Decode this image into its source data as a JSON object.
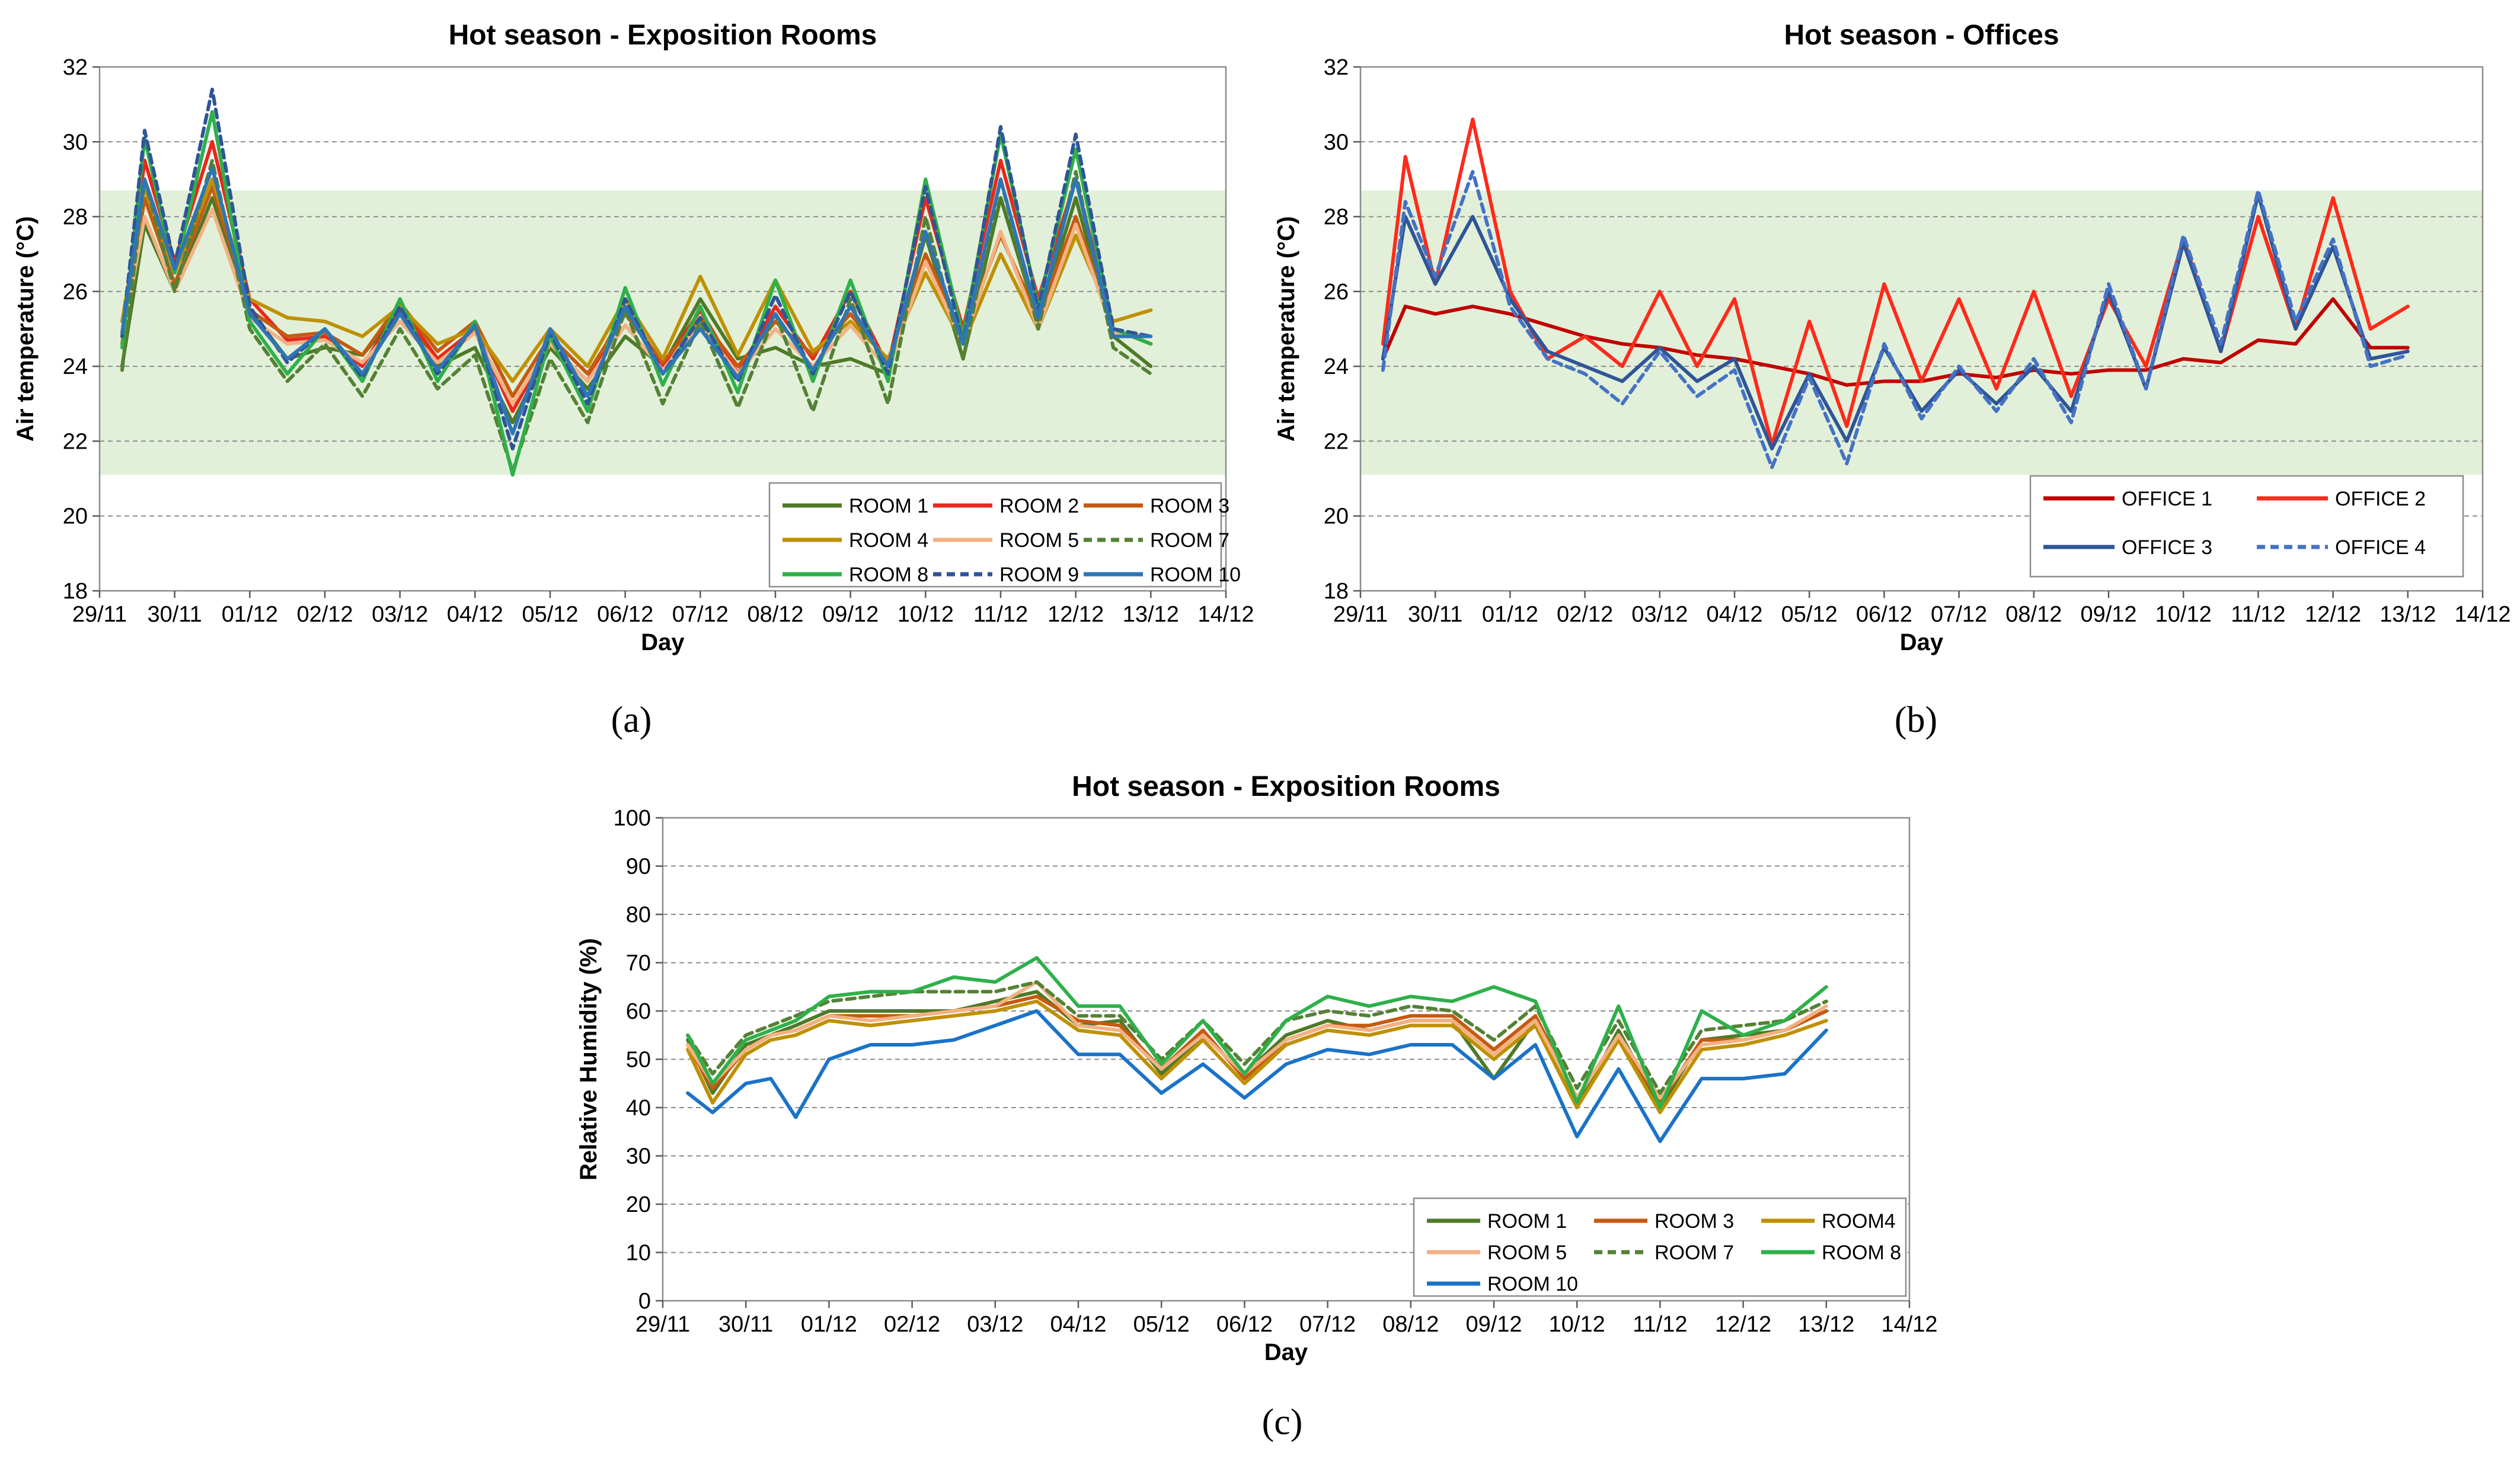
{
  "chart_data": [
    {
      "type": "line",
      "title": "Hot season - Exposition Rooms",
      "panel_label": "(a)",
      "xlabel": "Day",
      "ylabel": "Air temperature  (°C)",
      "xticks": [
        "29/11",
        "30/11",
        "01/12",
        "02/12",
        "03/12",
        "04/12",
        "05/12",
        "06/12",
        "07/12",
        "08/12",
        "09/12",
        "10/12",
        "11/12",
        "12/12",
        "13/12",
        "14/12"
      ],
      "ylim": [
        18,
        32
      ],
      "yticks": [
        18,
        20,
        22,
        24,
        26,
        28,
        30,
        32
      ],
      "comfort_band": [
        21.1,
        28.7
      ],
      "grid": true,
      "legend_position": "bottom-right",
      "x": [
        0.3,
        0.6,
        1.0,
        1.5,
        2.0,
        2.5,
        3.0,
        3.5,
        4.0,
        4.5,
        5.0,
        5.5,
        6.0,
        6.5,
        7.0,
        7.5,
        8.0,
        8.5,
        9.0,
        9.5,
        10.0,
        10.5,
        11.0,
        11.5,
        12.0,
        12.5,
        13.0,
        13.5,
        14.0
      ],
      "series": [
        {
          "name": "ROOM 1",
          "color": "#4e7a27",
          "dash": false,
          "values": [
            24.0,
            27.8,
            26.0,
            28.5,
            25.5,
            24.2,
            24.5,
            24.3,
            25.5,
            24.0,
            24.5,
            22.5,
            24.5,
            23.4,
            24.8,
            24.0,
            25.8,
            24.2,
            24.5,
            24.0,
            24.2,
            23.8,
            27.5,
            24.2,
            28.5,
            25.2,
            28.5,
            24.8,
            24.0
          ]
        },
        {
          "name": "ROOM 2",
          "color": "#e8281c",
          "dash": false,
          "values": [
            24.8,
            29.5,
            26.8,
            30.0,
            25.8,
            24.7,
            24.8,
            24.0,
            25.6,
            24.2,
            25.0,
            22.8,
            24.6,
            23.6,
            25.6,
            24.0,
            25.5,
            23.8,
            25.6,
            24.2,
            26.0,
            24.0,
            28.5,
            25.0,
            29.5,
            25.8,
            29.0,
            25.0,
            24.6
          ]
        },
        {
          "name": "ROOM 3",
          "color": "#c55a11",
          "dash": false,
          "values": [
            24.6,
            28.5,
            26.2,
            28.8,
            25.5,
            24.8,
            24.9,
            24.3,
            25.7,
            24.4,
            25.2,
            23.2,
            24.8,
            23.8,
            25.4,
            24.1,
            25.3,
            24.0,
            25.2,
            24.3,
            25.4,
            24.1,
            27.0,
            24.8,
            27.5,
            25.3,
            28.0,
            25.0,
            24.6
          ]
        },
        {
          "name": "ROOM 4",
          "color": "#bf9000",
          "dash": false,
          "values": [
            25.2,
            28.8,
            26.5,
            29.0,
            25.8,
            25.3,
            25.2,
            24.8,
            25.6,
            24.6,
            25.0,
            23.6,
            25.0,
            24.0,
            25.8,
            24.2,
            26.4,
            24.3,
            26.3,
            24.4,
            25.2,
            24.2,
            26.5,
            24.6,
            27.0,
            25.0,
            27.5,
            25.2,
            25.5
          ]
        },
        {
          "name": "ROOM 5",
          "color": "#f4b183",
          "dash": false,
          "values": [
            24.7,
            28.0,
            26.0,
            28.2,
            25.3,
            24.6,
            24.7,
            24.1,
            25.2,
            24.1,
            24.9,
            23.0,
            24.6,
            23.6,
            25.1,
            23.9,
            25.1,
            23.8,
            25.0,
            24.0,
            25.1,
            23.9,
            26.8,
            24.6,
            27.6,
            25.0,
            27.8,
            24.9,
            24.8
          ]
        },
        {
          "name": "ROOM 7",
          "color": "#548235",
          "dash": true,
          "values": [
            23.9,
            29.0,
            26.0,
            29.5,
            25.0,
            23.6,
            24.6,
            23.2,
            25.0,
            23.4,
            24.3,
            21.2,
            24.2,
            22.5,
            25.5,
            23.0,
            25.2,
            22.9,
            25.4,
            22.8,
            25.8,
            23.0,
            28.0,
            24.2,
            29.0,
            25.0,
            29.2,
            24.5,
            23.8
          ]
        },
        {
          "name": "ROOM 8",
          "color": "#2eb04a",
          "dash": false,
          "values": [
            24.5,
            30.1,
            26.5,
            30.8,
            25.2,
            23.8,
            25.0,
            23.6,
            25.8,
            23.6,
            25.2,
            21.1,
            24.8,
            22.8,
            26.1,
            23.5,
            25.6,
            23.3,
            26.3,
            23.6,
            26.3,
            23.6,
            29.0,
            24.8,
            30.2,
            25.6,
            29.8,
            25.0,
            24.6
          ]
        },
        {
          "name": "ROOM 9",
          "color": "#2f5597",
          "dash": true,
          "values": [
            24.8,
            30.3,
            26.7,
            31.4,
            25.6,
            24.1,
            25.0,
            23.7,
            25.6,
            23.8,
            25.1,
            21.8,
            24.9,
            23.0,
            25.8,
            23.8,
            25.3,
            23.6,
            25.9,
            23.8,
            26.0,
            23.8,
            28.8,
            24.6,
            30.4,
            25.5,
            30.2,
            25.0,
            24.8
          ]
        },
        {
          "name": "ROOM 10",
          "color": "#2e75b6",
          "dash": false,
          "values": [
            24.9,
            29.0,
            26.6,
            29.3,
            25.4,
            24.2,
            25.0,
            23.8,
            25.4,
            23.9,
            25.1,
            22.2,
            25.0,
            23.2,
            25.6,
            23.8,
            25.0,
            23.7,
            25.4,
            23.9,
            25.6,
            24.0,
            27.6,
            24.6,
            29.0,
            25.3,
            29.0,
            24.8,
            24.8
          ]
        }
      ]
    },
    {
      "type": "line",
      "title": "Hot season - Offices",
      "panel_label": "(b)",
      "xlabel": "Day",
      "ylabel": "Air temperature  (°C)",
      "xticks": [
        "29/11",
        "30/11",
        "01/12",
        "02/12",
        "03/12",
        "04/12",
        "05/12",
        "06/12",
        "07/12",
        "08/12",
        "09/12",
        "10/12",
        "11/12",
        "12/12",
        "13/12",
        "14/12"
      ],
      "ylim": [
        18,
        32
      ],
      "yticks": [
        18,
        20,
        22,
        24,
        26,
        28,
        30,
        32
      ],
      "comfort_band": [
        21.1,
        28.7
      ],
      "grid": true,
      "legend_position": "bottom-right",
      "x": [
        0.3,
        0.6,
        1.0,
        1.5,
        2.0,
        2.5,
        3.0,
        3.5,
        4.0,
        4.5,
        5.0,
        5.5,
        6.0,
        6.5,
        7.0,
        7.5,
        8.0,
        8.5,
        9.0,
        9.5,
        10.0,
        10.5,
        11.0,
        11.5,
        12.0,
        12.5,
        13.0,
        13.5,
        14.0
      ],
      "series": [
        {
          "name": "OFFICE 1",
          "color": "#c00000",
          "dash": false,
          "values": [
            24.2,
            25.6,
            25.4,
            25.6,
            25.4,
            25.1,
            24.8,
            24.6,
            24.5,
            24.3,
            24.2,
            24.0,
            23.8,
            23.5,
            23.6,
            23.6,
            23.8,
            23.7,
            23.9,
            23.8,
            23.9,
            23.9,
            24.2,
            24.1,
            24.7,
            24.6,
            25.8,
            24.5,
            24.5
          ]
        },
        {
          "name": "OFFICE 2",
          "color": "#ff2a1a",
          "dash": false,
          "values": [
            24.6,
            29.6,
            26.2,
            30.6,
            26.0,
            24.2,
            24.8,
            24.0,
            26.0,
            24.0,
            25.8,
            21.9,
            25.2,
            22.4,
            26.2,
            23.6,
            25.8,
            23.4,
            26.0,
            23.2,
            25.8,
            24.0,
            27.4,
            24.4,
            28.0,
            25.0,
            28.5,
            25.0,
            25.6
          ]
        },
        {
          "name": "OFFICE 3",
          "color": "#2f5597",
          "dash": false,
          "values": [
            24.2,
            28.0,
            26.2,
            28.0,
            25.8,
            24.4,
            24.0,
            23.6,
            24.5,
            23.6,
            24.2,
            21.8,
            23.8,
            22.0,
            24.5,
            22.8,
            23.9,
            23.0,
            24.0,
            22.8,
            26.0,
            23.4,
            27.3,
            24.4,
            28.6,
            25.0,
            27.2,
            24.2,
            24.4
          ]
        },
        {
          "name": "OFFICE 4",
          "color": "#4472c4",
          "dash": true,
          "values": [
            23.9,
            28.4,
            26.4,
            29.2,
            25.6,
            24.2,
            23.8,
            23.0,
            24.4,
            23.2,
            23.9,
            21.3,
            23.7,
            21.4,
            24.6,
            22.6,
            24.0,
            22.8,
            24.2,
            22.5,
            26.2,
            23.4,
            27.5,
            24.6,
            28.7,
            25.2,
            27.4,
            24.0,
            24.3
          ]
        }
      ]
    },
    {
      "type": "line",
      "title": "Hot season - Exposition Rooms",
      "panel_label": "(c)",
      "xlabel": "Day",
      "ylabel": "Relative Humidity  (%)",
      "xticks": [
        "29/11",
        "30/11",
        "01/12",
        "02/12",
        "03/12",
        "04/12",
        "05/12",
        "06/12",
        "07/12",
        "08/12",
        "09/12",
        "10/12",
        "11/12",
        "12/12",
        "13/12",
        "14/12"
      ],
      "ylim": [
        0,
        100
      ],
      "yticks": [
        0,
        10,
        20,
        30,
        40,
        50,
        60,
        70,
        80,
        90,
        100
      ],
      "grid": true,
      "legend_position": "bottom-right",
      "x": [
        0.3,
        0.6,
        1.0,
        1.3,
        1.6,
        2.0,
        2.5,
        3.0,
        3.5,
        4.0,
        4.5,
        5.0,
        5.5,
        6.0,
        6.5,
        7.0,
        7.5,
        8.0,
        8.5,
        9.0,
        9.5,
        10.0,
        10.5,
        11.0,
        11.5,
        12.0,
        12.5,
        13.0,
        13.5,
        14.0
      ],
      "series": [
        {
          "name": "ROOM 1",
          "color": "#4e7a27",
          "dash": false,
          "values": [
            54,
            43,
            53,
            55,
            57,
            60,
            60,
            60,
            60,
            62,
            64,
            57,
            58,
            47,
            55,
            47,
            55,
            58,
            56,
            58,
            58,
            46,
            58,
            40,
            56,
            40,
            54,
            55,
            56,
            60
          ]
        },
        {
          "name": "ROOM 3",
          "color": "#c55a11",
          "dash": false,
          "values": [
            53,
            44,
            52,
            55,
            56,
            59,
            59,
            59,
            60,
            61,
            63,
            58,
            57,
            48,
            56,
            46,
            54,
            57,
            57,
            59,
            59,
            52,
            59,
            42,
            55,
            41,
            54,
            54,
            56,
            60
          ]
        },
        {
          "name": "ROOM4",
          "color": "#bf9000",
          "dash": false,
          "values": [
            52,
            41,
            51,
            54,
            55,
            58,
            57,
            58,
            59,
            60,
            62,
            56,
            55,
            46,
            54,
            45,
            53,
            56,
            55,
            57,
            57,
            50,
            57,
            40,
            54,
            39,
            52,
            53,
            55,
            58
          ]
        },
        {
          "name": "ROOM 5",
          "color": "#f4b183",
          "dash": false,
          "values": [
            53,
            45,
            52,
            55,
            56,
            59,
            58,
            59,
            60,
            61,
            66,
            57,
            56,
            48,
            55,
            47,
            54,
            57,
            56,
            58,
            58,
            51,
            58,
            42,
            55,
            42,
            53,
            54,
            56,
            61
          ]
        },
        {
          "name": "ROOM 7",
          "color": "#548235",
          "dash": true,
          "values": [
            55,
            47,
            55,
            57,
            59,
            62,
            63,
            64,
            64,
            64,
            66,
            59,
            59,
            50,
            58,
            49,
            58,
            60,
            59,
            61,
            60,
            54,
            61,
            44,
            58,
            43,
            56,
            57,
            58,
            62
          ]
        },
        {
          "name": "ROOM 8",
          "color": "#2eb04a",
          "dash": false,
          "values": [
            55,
            45,
            54,
            56,
            58,
            63,
            64,
            64,
            67,
            66,
            71,
            61,
            61,
            49,
            58,
            47,
            58,
            63,
            61,
            63,
            62,
            65,
            62,
            41,
            61,
            40,
            60,
            55,
            58,
            65
          ]
        },
        {
          "name": "ROOM 10",
          "color": "#1a73c7",
          "dash": false,
          "values": [
            43,
            39,
            45,
            46,
            38,
            50,
            53,
            53,
            54,
            57,
            60,
            51,
            51,
            43,
            49,
            42,
            49,
            52,
            51,
            53,
            53,
            46,
            53,
            34,
            48,
            33,
            46,
            46,
            47,
            56
          ]
        }
      ]
    }
  ]
}
